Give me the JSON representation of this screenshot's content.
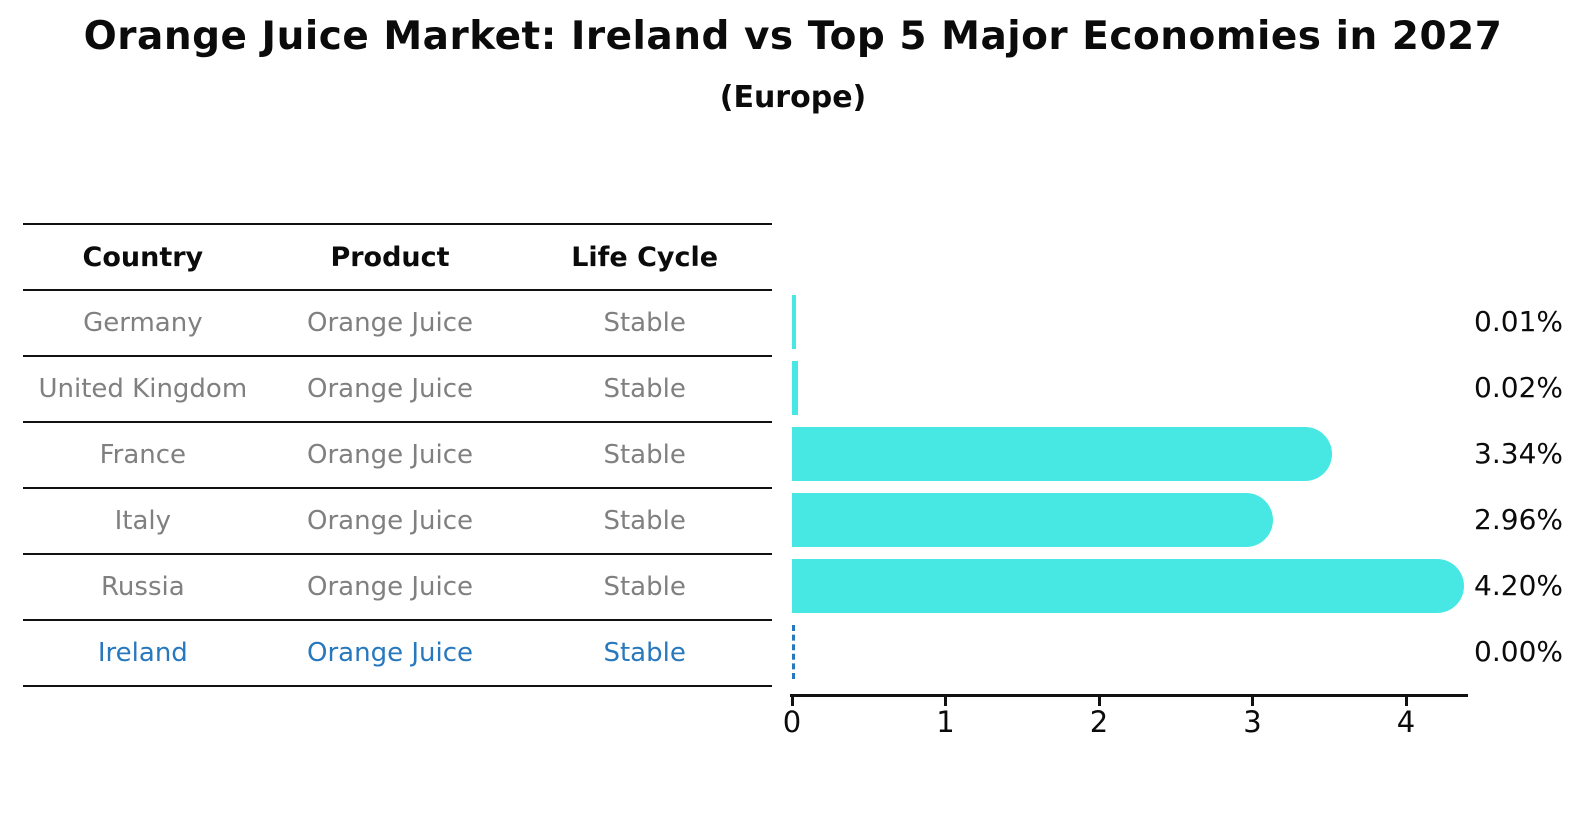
{
  "title": "Orange Juice Market: Ireland vs Top 5 Major Economies in 2027",
  "subtitle": "(Europe)",
  "table": {
    "headers": [
      "Country",
      "Product",
      "Life Cycle"
    ],
    "rows": [
      {
        "country": "Germany",
        "product": "Orange Juice",
        "life_cycle": "Stable",
        "highlight": false
      },
      {
        "country": "United Kingdom",
        "product": "Orange Juice",
        "life_cycle": "Stable",
        "highlight": false
      },
      {
        "country": "France",
        "product": "Orange Juice",
        "life_cycle": "Stable",
        "highlight": false
      },
      {
        "country": "Italy",
        "product": "Orange Juice",
        "life_cycle": "Stable",
        "highlight": false
      },
      {
        "country": "Russia",
        "product": "Orange Juice",
        "life_cycle": "Stable",
        "highlight": false
      },
      {
        "country": "Ireland",
        "product": "Orange Juice",
        "life_cycle": "Stable",
        "highlight": true
      }
    ]
  },
  "chart_data": {
    "type": "bar",
    "orientation": "horizontal",
    "title": "Orange Juice Market: Ireland vs Top 5 Major Economies in 2027 (Europe)",
    "categories": [
      "Germany",
      "United Kingdom",
      "France",
      "Italy",
      "Russia",
      "Ireland"
    ],
    "values": [
      0.01,
      0.02,
      3.34,
      2.96,
      4.2,
      0.0
    ],
    "value_labels": [
      "0.01%",
      "0.02%",
      "3.34%",
      "2.96%",
      "4.20%",
      "0.00%"
    ],
    "x_ticks": [
      0,
      1,
      2,
      3,
      4
    ],
    "xlim": [
      0,
      4.4
    ],
    "xlabel": "",
    "ylabel": "",
    "grid": false,
    "legend": false,
    "bar_color": "#47E7E3",
    "highlight_index": 5,
    "highlight_color": "#2878BE",
    "highlight_style": "dashed-zero-line"
  },
  "colors": {
    "background": "#ffffff",
    "text_primary": "#0b0b0b",
    "text_muted": "#808080",
    "bar": "#47E7E3",
    "highlight": "#2878BE",
    "rule": "#111111"
  }
}
